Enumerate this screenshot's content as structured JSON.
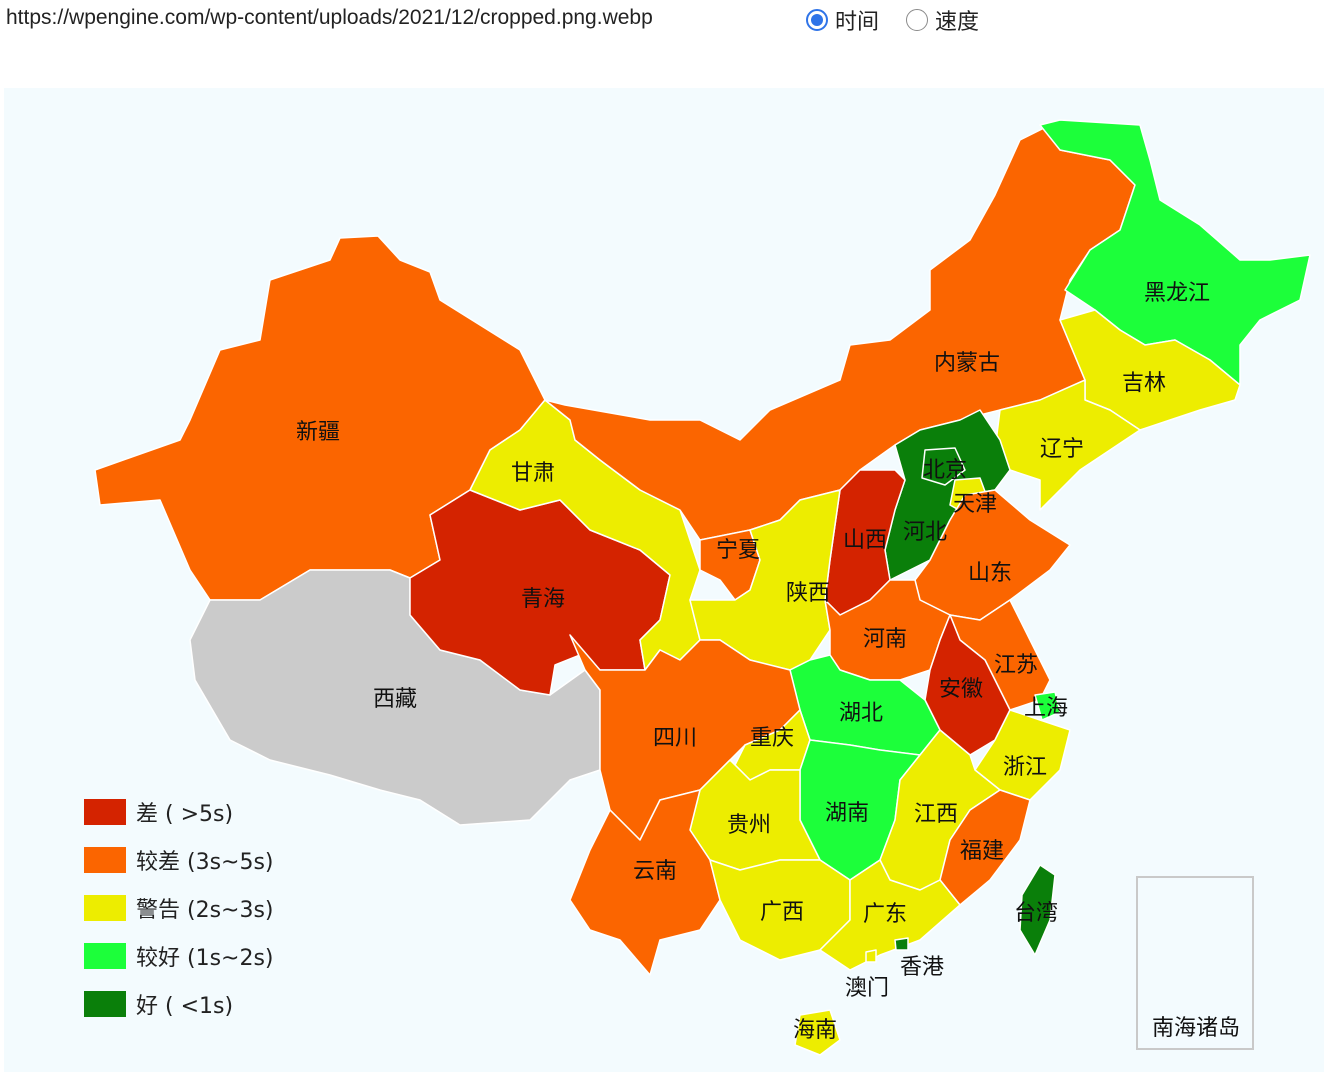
{
  "url_text": "https://wpengine.com/wp-content/uploads/2021/12/cropped.png.webp",
  "metric_toggle": {
    "options": [
      {
        "label": "时间",
        "checked": true
      },
      {
        "label": "速度",
        "checked": false
      }
    ]
  },
  "legend": [
    {
      "label": "差 ( >5s)",
      "color": "#d42300"
    },
    {
      "label": "较差 (3s~5s)",
      "color": "#fb6500"
    },
    {
      "label": "警告 (2s~3s)",
      "color": "#eded00"
    },
    {
      "label": "较好 (1s~2s)",
      "color": "#1cff3a"
    },
    {
      "label": "好 ( <1s)",
      "color": "#0a7f0a"
    }
  ],
  "no_data_color": "#cbcbcb",
  "provinces": [
    {
      "name": "新疆",
      "level": "较差"
    },
    {
      "name": "西藏",
      "level": "无数据"
    },
    {
      "name": "青海",
      "level": "差"
    },
    {
      "name": "甘肃",
      "level": "警告"
    },
    {
      "name": "内蒙古",
      "level": "较差"
    },
    {
      "name": "黑龙江",
      "level": "较好"
    },
    {
      "name": "吉林",
      "level": "警告"
    },
    {
      "name": "辽宁",
      "level": "警告"
    },
    {
      "name": "北京",
      "level": "好"
    },
    {
      "name": "天津",
      "level": "警告"
    },
    {
      "name": "河北",
      "level": "好"
    },
    {
      "name": "山西",
      "level": "差"
    },
    {
      "name": "宁夏",
      "level": "较差"
    },
    {
      "name": "陕西",
      "level": "警告"
    },
    {
      "name": "山东",
      "level": "较差"
    },
    {
      "name": "河南",
      "level": "较差"
    },
    {
      "name": "江苏",
      "level": "较差"
    },
    {
      "name": "安徽",
      "level": "差"
    },
    {
      "name": "上海",
      "level": "较好"
    },
    {
      "name": "湖北",
      "level": "较好"
    },
    {
      "name": "四川",
      "level": "较差"
    },
    {
      "name": "重庆",
      "level": "警告"
    },
    {
      "name": "浙江",
      "level": "警告"
    },
    {
      "name": "湖南",
      "level": "较好"
    },
    {
      "name": "贵州",
      "level": "警告"
    },
    {
      "name": "江西",
      "level": "警告"
    },
    {
      "name": "福建",
      "level": "较差"
    },
    {
      "name": "云南",
      "level": "较差"
    },
    {
      "name": "广西",
      "level": "警告"
    },
    {
      "name": "广东",
      "level": "警告"
    },
    {
      "name": "台湾",
      "level": "好"
    },
    {
      "name": "香港",
      "level": "好"
    },
    {
      "name": "澳门",
      "level": "警告"
    },
    {
      "name": "海南",
      "level": "警告"
    }
  ],
  "inset_label": "南海诸岛"
}
